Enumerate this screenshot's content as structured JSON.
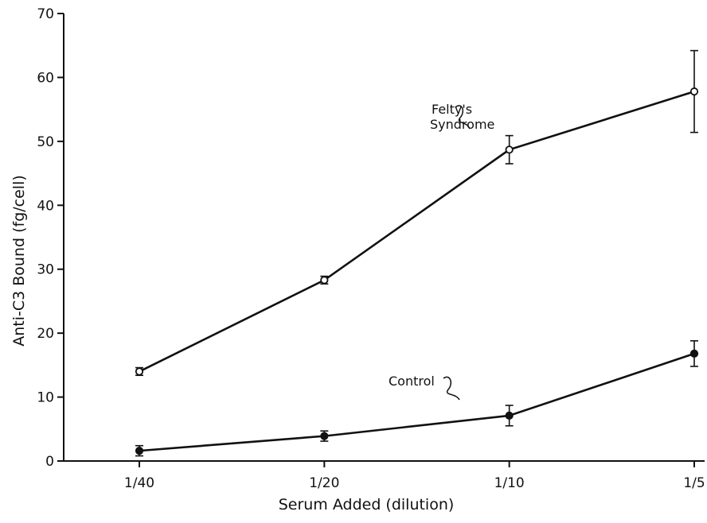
{
  "chart_data": {
    "type": "line",
    "title": "",
    "xlabel": "Serum Added (dilution)",
    "ylabel": "Anti-C3 Bound (fg/cell)",
    "categories": [
      "1/40",
      "1/20",
      "1/10",
      "1/5"
    ],
    "x": [
      0.025,
      0.05,
      0.1,
      0.2
    ],
    "ylim": [
      0,
      70
    ],
    "yticks": [
      0,
      10,
      20,
      30,
      40,
      50,
      60,
      70
    ],
    "grid": false,
    "series": [
      {
        "name": "Felty's Syndrome",
        "marker": "open-circle",
        "values": [
          14,
          28.3,
          48.7,
          57.8
        ],
        "error": [
          0.6,
          0.6,
          2.2,
          6.4
        ]
      },
      {
        "name": "Control",
        "marker": "filled-circle",
        "values": [
          1.6,
          3.9,
          7.1,
          16.8
        ],
        "error": [
          0.8,
          0.8,
          1.6,
          2.0
        ]
      }
    ],
    "annotations": [
      {
        "series": 0,
        "lines": [
          "Felty's",
          "Syndrome"
        ]
      },
      {
        "series": 1,
        "lines": [
          "Control"
        ]
      }
    ]
  }
}
